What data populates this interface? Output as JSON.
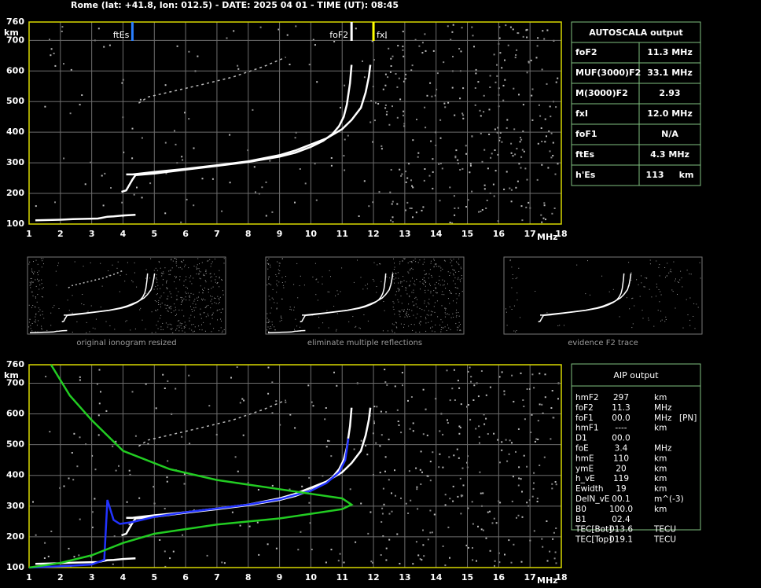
{
  "header": {
    "title": "Rome (lat: +41.8, lon: 012.5) - DATE: 2025 04 01 - TIME (UT): 08:45"
  },
  "chart_data": [
    {
      "type": "scatter",
      "xlim": [
        1,
        18
      ],
      "ylim": [
        100,
        760
      ],
      "xticks": [
        1,
        2,
        3,
        4,
        5,
        6,
        7,
        8,
        9,
        10,
        11,
        12,
        13,
        14,
        15,
        16,
        17,
        18
      ],
      "yticks": [
        100,
        200,
        300,
        400,
        500,
        600,
        700,
        760
      ],
      "x_label": "MHz",
      "y_label": "km",
      "grid": true,
      "frame_color": "#d8d800",
      "markers": [
        {
          "label": "ftEs",
          "value": 4.3,
          "color": "#2a7fff"
        },
        {
          "label": "foF2",
          "value": 11.3,
          "color": "#ffffff"
        },
        {
          "label": "fxI",
          "value": 12.0,
          "color": "#ffff00"
        }
      ],
      "series": [
        {
          "color": "#ffffff",
          "x": [
            1.2,
            1.6,
            2.0,
            2.4,
            2.8,
            3.2,
            3.5,
            3.7,
            4.0,
            4.4
          ],
          "values": [
            112,
            113,
            114,
            116,
            117,
            118,
            124,
            125,
            128,
            130
          ]
        },
        {
          "color": "#ffffff",
          "x": [
            3.95,
            4.1,
            4.3,
            4.4,
            5,
            6,
            7,
            8,
            9,
            9.5,
            10,
            10.4,
            10.7,
            10.9,
            11.05,
            11.15,
            11.25,
            11.3
          ],
          "values": [
            205,
            210,
            245,
            260,
            265,
            278,
            290,
            303,
            320,
            333,
            352,
            372,
            395,
            420,
            450,
            490,
            560,
            620
          ]
        },
        {
          "color": "#ffffff",
          "x": [
            4.1,
            4.3,
            4.4,
            5,
            6,
            7,
            8,
            9,
            9.5,
            10,
            10.5,
            11,
            11.3,
            11.6,
            11.75,
            11.85,
            11.9
          ],
          "values": [
            262,
            262,
            263,
            270,
            280,
            292,
            305,
            325,
            340,
            360,
            380,
            410,
            440,
            480,
            530,
            580,
            620
          ]
        },
        {
          "color": "#bbbbbb",
          "x": [
            4.5,
            4.8,
            6.5,
            7.5,
            8.5,
            9.2
          ],
          "values": [
            495,
            515,
            555,
            580,
            615,
            645
          ]
        }
      ]
    },
    {
      "type": "scatter",
      "xlim": [
        1,
        18
      ],
      "ylim": [
        100,
        760
      ],
      "xticks": [
        1,
        2,
        3,
        4,
        5,
        6,
        7,
        8,
        9,
        10,
        11,
        12,
        13,
        14,
        15,
        16,
        17,
        18
      ],
      "yticks": [
        100,
        200,
        300,
        400,
        500,
        600,
        700,
        760
      ],
      "x_label": "MHz",
      "y_label": "km",
      "grid": true,
      "frame_color": "#d8d800",
      "series": [
        {
          "color": "#ffffff",
          "x": [
            1.2,
            1.6,
            2.0,
            2.4,
            2.8,
            3.2,
            3.5,
            3.7,
            4.0,
            4.4
          ],
          "values": [
            112,
            113,
            114,
            116,
            117,
            118,
            124,
            125,
            128,
            130
          ]
        },
        {
          "color": "#ffffff",
          "x": [
            3.95,
            4.1,
            4.3,
            4.4,
            5,
            6,
            7,
            8,
            9,
            9.5,
            10,
            10.4,
            10.7,
            10.9,
            11.05,
            11.15,
            11.25,
            11.3
          ],
          "values": [
            205,
            210,
            245,
            260,
            265,
            278,
            290,
            303,
            320,
            333,
            352,
            372,
            395,
            420,
            450,
            490,
            560,
            620
          ]
        },
        {
          "color": "#ffffff",
          "x": [
            4.1,
            4.3,
            4.4,
            5,
            6,
            7,
            8,
            9,
            9.5,
            10,
            10.5,
            11,
            11.3,
            11.6,
            11.75,
            11.85,
            11.9
          ],
          "values": [
            262,
            262,
            263,
            270,
            280,
            292,
            305,
            325,
            340,
            360,
            380,
            410,
            440,
            480,
            530,
            580,
            620
          ]
        },
        {
          "color": "#bbbbbb",
          "x": [
            4.5,
            4.8,
            6.5,
            7.5,
            8.5,
            9.2
          ],
          "values": [
            495,
            515,
            555,
            580,
            615,
            645
          ]
        },
        {
          "color": "#2233ff",
          "x": [
            1,
            2,
            3,
            3.4,
            3.5,
            3.7,
            3.9,
            4.3,
            5,
            6,
            7,
            8,
            9,
            10,
            10.5,
            10.9,
            11.1,
            11.2
          ],
          "values": [
            100,
            104,
            110,
            125,
            320,
            255,
            242,
            248,
            265,
            280,
            292,
            305,
            322,
            350,
            375,
            410,
            450,
            520
          ]
        },
        {
          "color": "#22cc22",
          "x": [
            1,
            2,
            3,
            4,
            5,
            6,
            7,
            8,
            9,
            10,
            11,
            11.3,
            11,
            10,
            9,
            8,
            7,
            5.5,
            4,
            3,
            2.3,
            1.7
          ],
          "values": [
            100,
            115,
            140,
            180,
            210,
            225,
            240,
            250,
            260,
            275,
            290,
            305,
            325,
            340,
            355,
            370,
            385,
            420,
            480,
            580,
            660,
            760
          ]
        }
      ]
    }
  ],
  "thumbnails": [
    {
      "caption": "original ionogram resized"
    },
    {
      "caption": "eliminate multiple reflections"
    },
    {
      "caption": "evidence F2 trace"
    }
  ],
  "autoscala": {
    "title": "AUTOSCALA output",
    "rows": [
      {
        "label": "foF2",
        "value": "11.3 MHz",
        "color": "#ffffff"
      },
      {
        "label": "MUF(3000)F2",
        "value": "33.1 MHz",
        "color": "#ffffff"
      },
      {
        "label": "M(3000)F2",
        "value": "2.93",
        "color": "#ffffff"
      },
      {
        "label": "fxI",
        "value": "12.0 MHz",
        "color": "#ffff00"
      },
      {
        "label": "foF1",
        "value": "N/A",
        "color": "#ff2020"
      },
      {
        "label": "ftEs",
        "value": "4.3 MHz",
        "color": "#2a7fff"
      },
      {
        "label": "h'Es",
        "value": "113     km",
        "color": "#ffffff"
      }
    ]
  },
  "aip": {
    "title": "AIP output",
    "rows": [
      {
        "name": "hmF2",
        "value": "297",
        "unit": "km"
      },
      {
        "name": "foF2",
        "value": "11.3",
        "unit": "MHz"
      },
      {
        "name": "foF1",
        "value": "00.0",
        "unit": "MHz",
        "note": "[PN]"
      },
      {
        "name": "hmF1",
        "value": "----",
        "unit": "km"
      },
      {
        "name": "D1",
        "value": "00.0"
      },
      {
        "name": "foE",
        "value": "3.4",
        "unit": "MHz"
      },
      {
        "name": "hmE",
        "value": "110",
        "unit": "km"
      },
      {
        "name": "ymE",
        "value": "20",
        "unit": "km"
      },
      {
        "name": "h_vE",
        "value": "119",
        "unit": "km"
      },
      {
        "name": "Ewidth",
        "value": "19",
        "unit": "km"
      },
      {
        "name": "DelN_vE",
        "value": "00.1",
        "unit": "m^(-3)"
      },
      {
        "name": "B0",
        "value": "100.0",
        "unit": "km"
      },
      {
        "name": "B1",
        "value": "02.4"
      },
      {
        "name": "TEC[Bot]",
        "value": "013.6",
        "unit": "TECU"
      },
      {
        "name": "TEC[Top]",
        "value": "019.1",
        "unit": "TECU"
      }
    ]
  }
}
